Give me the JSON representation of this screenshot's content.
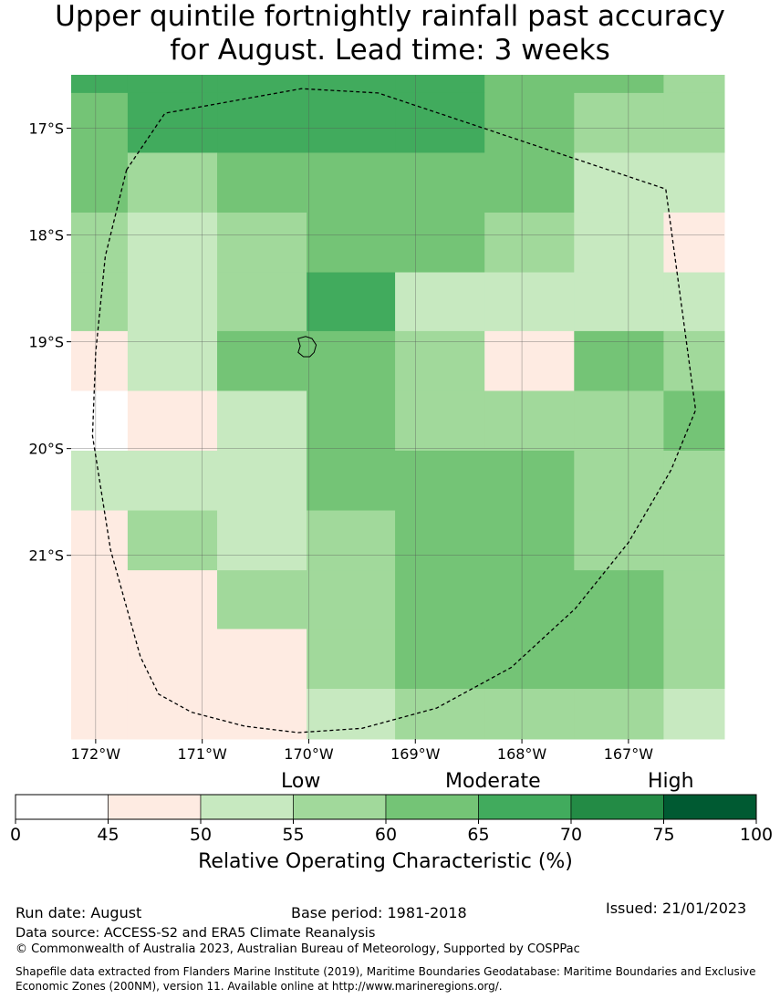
{
  "title": {
    "line1": "Upper quintile fortnightly rainfall past accuracy",
    "line2": "for August. Lead time: 3 weeks"
  },
  "map": {
    "lon_range": [
      -172.23,
      -166.1
    ],
    "lat_range": [
      -22.72,
      -16.5
    ],
    "lon_ticks": [
      {
        "value": -172,
        "label": "172°W"
      },
      {
        "value": -171,
        "label": "171°W"
      },
      {
        "value": -170,
        "label": "170°W"
      },
      {
        "value": -169,
        "label": "169°W"
      },
      {
        "value": -168,
        "label": "168°W"
      },
      {
        "value": -167,
        "label": "167°W"
      }
    ],
    "lat_ticks": [
      {
        "value": -17,
        "label": "17°S"
      },
      {
        "value": -18,
        "label": "18°S"
      },
      {
        "value": -19,
        "label": "19°S"
      },
      {
        "value": -20,
        "label": "20°S"
      },
      {
        "value": -21,
        "label": "21°S"
      }
    ],
    "grid_lines": true,
    "cell_lon_edges": [
      -172.23,
      -171.7,
      -170.86,
      -170.02,
      -169.19,
      -168.35,
      -167.51,
      -166.67,
      -166.1
    ],
    "cell_lat_edges": [
      -16.5,
      -16.67,
      -17.23,
      -17.79,
      -18.35,
      -18.9,
      -19.46,
      -20.02,
      -20.58,
      -21.14,
      -21.69,
      -22.25,
      -22.72
    ],
    "roc_grid": [
      [
        67,
        67,
        67,
        67,
        67,
        62,
        62,
        57
      ],
      [
        62,
        67,
        67,
        67,
        67,
        62,
        57,
        57
      ],
      [
        62,
        57,
        62,
        62,
        62,
        62,
        52,
        52
      ],
      [
        57,
        52,
        57,
        62,
        62,
        57,
        52,
        47
      ],
      [
        57,
        52,
        57,
        67,
        52,
        52,
        52,
        52
      ],
      [
        47,
        52,
        62,
        62,
        57,
        47,
        62,
        57
      ],
      [
        40,
        47,
        52,
        62,
        57,
        57,
        57,
        62
      ],
      [
        52,
        52,
        52,
        62,
        62,
        62,
        57,
        57
      ],
      [
        47,
        57,
        52,
        57,
        62,
        62,
        57,
        57
      ],
      [
        47,
        47,
        57,
        57,
        62,
        62,
        62,
        57
      ],
      [
        47,
        47,
        47,
        57,
        62,
        62,
        62,
        57
      ],
      [
        47,
        47,
        47,
        52,
        57,
        57,
        57,
        52
      ]
    ],
    "eez_boundary": [
      [
        -171.71,
        -17.39
      ],
      [
        -171.35,
        -16.86
      ],
      [
        -170.07,
        -16.63
      ],
      [
        -169.35,
        -16.67
      ],
      [
        -166.65,
        -17.57
      ],
      [
        -166.37,
        -19.64
      ],
      [
        -166.6,
        -20.2
      ],
      [
        -167.0,
        -20.88
      ],
      [
        -167.5,
        -21.5
      ],
      [
        -168.1,
        -22.05
      ],
      [
        -168.8,
        -22.43
      ],
      [
        -169.5,
        -22.62
      ],
      [
        -170.1,
        -22.66
      ],
      [
        -170.6,
        -22.6
      ],
      [
        -171.1,
        -22.47
      ],
      [
        -171.41,
        -22.3
      ],
      [
        -171.58,
        -21.95
      ],
      [
        -171.86,
        -20.95
      ],
      [
        -172.03,
        -19.88
      ],
      [
        -172.0,
        -19.1
      ],
      [
        -171.91,
        -18.2
      ],
      [
        -171.71,
        -17.39
      ]
    ],
    "island_outline": [
      [
        -170.1,
        -18.97
      ],
      [
        -170.03,
        -18.95
      ],
      [
        -169.97,
        -18.97
      ],
      [
        -169.93,
        -19.03
      ],
      [
        -169.95,
        -19.1
      ],
      [
        -169.99,
        -19.14
      ],
      [
        -170.05,
        -19.14
      ],
      [
        -170.1,
        -19.1
      ],
      [
        -170.08,
        -19.04
      ],
      [
        -170.1,
        -18.97
      ]
    ]
  },
  "colorbar": {
    "ticks": [
      "0",
      "45",
      "50",
      "55",
      "60",
      "65",
      "70",
      "75",
      "100"
    ],
    "tick_values": [
      0,
      45,
      50,
      55,
      60,
      65,
      70,
      75,
      100
    ],
    "colors": [
      "#ffffff",
      "#feebe2",
      "#c7e9c0",
      "#a1d99b",
      "#74c476",
      "#41ab5d",
      "#238b45",
      "#005a32"
    ],
    "level_labels": {
      "low": "Low",
      "moderate": "Moderate",
      "high": "High"
    },
    "axis_label": "Relative Operating Characteristic (%)"
  },
  "footer": {
    "run_date": "Run date: August",
    "base_period": "Base period: 1981-2018",
    "issued": "Issued: 21/01/2023",
    "data_source": "Data source: ACCESS-S2 and ERA5 Climate Reanalysis",
    "copyright": "© Commonwealth of Australia 2023, Australian Bureau of Meteorology, Supported by COSPPac",
    "shapefile_note": "Shapefile data extracted from Flanders Marine Institute (2019), Maritime Boundaries Geodatabase: Maritime Boundaries and Exclusive Economic Zones (200NM), version 11. Available online at http://www.marineregions.org/."
  }
}
